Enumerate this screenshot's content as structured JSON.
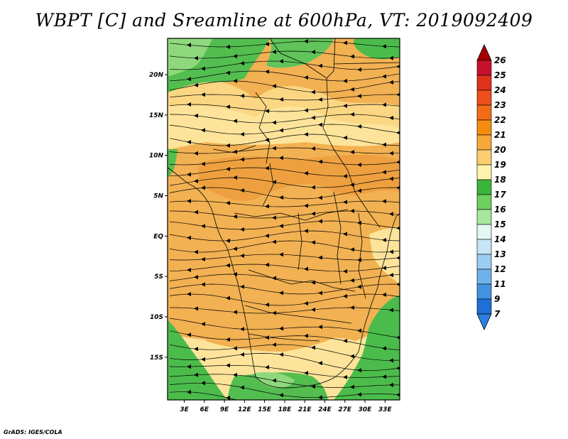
{
  "title": "WBPT [C] and Sreamline at 600hPa, VT: 2019092409",
  "credit": "GrADS: IGES/COLA",
  "axes": {
    "lat_ticks": [
      {
        "label": "20N",
        "value": 20
      },
      {
        "label": "15N",
        "value": 15
      },
      {
        "label": "10N",
        "value": 10
      },
      {
        "label": "5N",
        "value": 5
      },
      {
        "label": "EQ",
        "value": 0
      },
      {
        "label": "5S",
        "value": -5
      },
      {
        "label": "10S",
        "value": -10
      },
      {
        "label": "15S",
        "value": -15
      }
    ],
    "lon_ticks": [
      {
        "label": "3E",
        "value": 3
      },
      {
        "label": "6E",
        "value": 6
      },
      {
        "label": "9E",
        "value": 9
      },
      {
        "label": "12E",
        "value": 12
      },
      {
        "label": "15E",
        "value": 15
      },
      {
        "label": "18E",
        "value": 18
      },
      {
        "label": "21E",
        "value": 21
      },
      {
        "label": "24E",
        "value": 24
      },
      {
        "label": "27E",
        "value": 27
      },
      {
        "label": "30E",
        "value": 30
      },
      {
        "label": "33E",
        "value": 33
      }
    ],
    "lat_range": [
      -20.3,
      24.5
    ],
    "lon_range": [
      0.5,
      35.2
    ]
  },
  "colorbar": {
    "labels": [
      "26",
      "25",
      "24",
      "23",
      "22",
      "21",
      "20",
      "19",
      "18",
      "17",
      "16",
      "15",
      "14",
      "13",
      "12",
      "11",
      "9",
      "7"
    ],
    "colors": [
      "#a50000",
      "#c8102e",
      "#e0301e",
      "#ee4e1b",
      "#f26c15",
      "#f58c0f",
      "#f8a83a",
      "#fbcd6e",
      "#fdf4ad",
      "#3bb43a",
      "#6ccf5e",
      "#a8e6a0",
      "#e3f7f5",
      "#c6e6f7",
      "#9bcdf2",
      "#6fb2ea",
      "#4394e0",
      "#1e6fd6",
      "#2a7fe0"
    ]
  },
  "field_colors": {
    "green": "#4bbc4b",
    "light_green": "#8fd87e",
    "yellow": "#fdf1aa",
    "light_orange": "#f9d27a",
    "orange": "#f2a848",
    "dark_orange": "#ea9430"
  }
}
